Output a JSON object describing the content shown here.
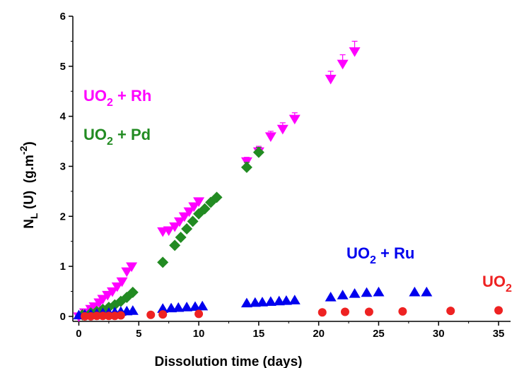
{
  "chart_data": {
    "type": "scatter",
    "title": "",
    "xlabel": "Dissolution time (days)",
    "ylabel": {
      "main": "N",
      "sub": "L",
      "paren": "(U)",
      "unit": "(g.m",
      "exp": "-2",
      "close": ")"
    },
    "xlim": [
      -0.5,
      36
    ],
    "ylim": [
      -0.1,
      6
    ],
    "xticks": [
      0,
      5,
      10,
      15,
      20,
      25,
      30,
      35
    ],
    "yticks": [
      0,
      1,
      2,
      3,
      4,
      5,
      6
    ],
    "grid": false,
    "legend": "inline labels",
    "series": [
      {
        "name": "UO2 + Rh",
        "label": {
          "base": "UO",
          "sub": "2",
          "rest": " + Rh"
        },
        "color": "#ff00ff",
        "marker": "triangle-down",
        "x": [
          0,
          0.5,
          1,
          1.3,
          1.7,
          2.0,
          2.4,
          2.8,
          3.2,
          3.6,
          4.0,
          4.4,
          7.0,
          7.5,
          8.0,
          8.4,
          8.8,
          9.2,
          9.6,
          10.0,
          14.0,
          15.0,
          16.0,
          17.0,
          18.0,
          21.0,
          22.0,
          23.0
        ],
        "y": [
          0.0,
          0.08,
          0.15,
          0.2,
          0.28,
          0.35,
          0.43,
          0.5,
          0.6,
          0.7,
          0.9,
          1.0,
          1.7,
          1.72,
          1.8,
          1.9,
          2.0,
          2.1,
          2.2,
          2.3,
          3.1,
          3.3,
          3.6,
          3.75,
          3.95,
          4.75,
          5.05,
          5.3
        ],
        "err": [
          0,
          0,
          0,
          0,
          0,
          0,
          0,
          0,
          0,
          0,
          0,
          0,
          0,
          0,
          0,
          0,
          0,
          0,
          0,
          0,
          0.08,
          0.1,
          0.1,
          0.12,
          0.12,
          0.15,
          0.18,
          0.2
        ]
      },
      {
        "name": "UO2 + Pd",
        "label": {
          "base": "UO",
          "sub": "2",
          "rest": " + Pd"
        },
        "color": "#228b22",
        "marker": "diamond",
        "x": [
          0.3,
          1.0,
          1.5,
          2.0,
          2.5,
          3.0,
          3.5,
          4.0,
          4.5,
          7.0,
          8.0,
          8.5,
          9.0,
          9.5,
          10.0,
          10.5,
          11.0,
          11.5,
          14.0,
          15.0
        ],
        "y": [
          0.03,
          0.07,
          0.1,
          0.14,
          0.18,
          0.23,
          0.3,
          0.38,
          0.48,
          1.08,
          1.42,
          1.58,
          1.75,
          1.9,
          2.05,
          2.15,
          2.28,
          2.38,
          2.98,
          3.28
        ],
        "err": [
          0,
          0,
          0,
          0,
          0,
          0,
          0,
          0,
          0,
          0,
          0,
          0,
          0,
          0,
          0,
          0,
          0,
          0,
          0.1,
          0.1
        ]
      },
      {
        "name": "UO2 + Ru",
        "label": {
          "base": "UO",
          "sub": "2",
          "rest": " + Ru"
        },
        "color": "#0000ee",
        "marker": "triangle-up",
        "x": [
          0,
          0.5,
          1,
          1.5,
          2,
          2.5,
          3,
          3.5,
          4,
          4.5,
          7.0,
          7.7,
          8.3,
          9.0,
          9.7,
          10.3,
          14,
          14.7,
          15.3,
          16,
          16.7,
          17.3,
          18,
          21,
          22,
          23,
          24,
          25,
          28,
          29
        ],
        "y": [
          0.02,
          0.03,
          0.04,
          0.05,
          0.06,
          0.07,
          0.08,
          0.09,
          0.1,
          0.11,
          0.15,
          0.16,
          0.17,
          0.18,
          0.19,
          0.2,
          0.26,
          0.27,
          0.28,
          0.29,
          0.3,
          0.31,
          0.32,
          0.38,
          0.42,
          0.45,
          0.47,
          0.48,
          0.48,
          0.48
        ],
        "err": []
      },
      {
        "name": "UO2",
        "label": {
          "base": "UO",
          "sub": "2",
          "rest": ""
        },
        "color": "#ee2222",
        "marker": "circle",
        "x": [
          0.5,
          1.0,
          1.5,
          2.0,
          2.5,
          3.0,
          3.5,
          6.0,
          7.0,
          10.0,
          20.3,
          22.2,
          24.2,
          27.0,
          31.0,
          35.0
        ],
        "y": [
          0.0,
          0.0,
          0.01,
          0.01,
          0.01,
          0.01,
          0.02,
          0.03,
          0.04,
          0.05,
          0.08,
          0.09,
          0.09,
          0.1,
          0.11,
          0.12
        ],
        "err": []
      }
    ]
  }
}
